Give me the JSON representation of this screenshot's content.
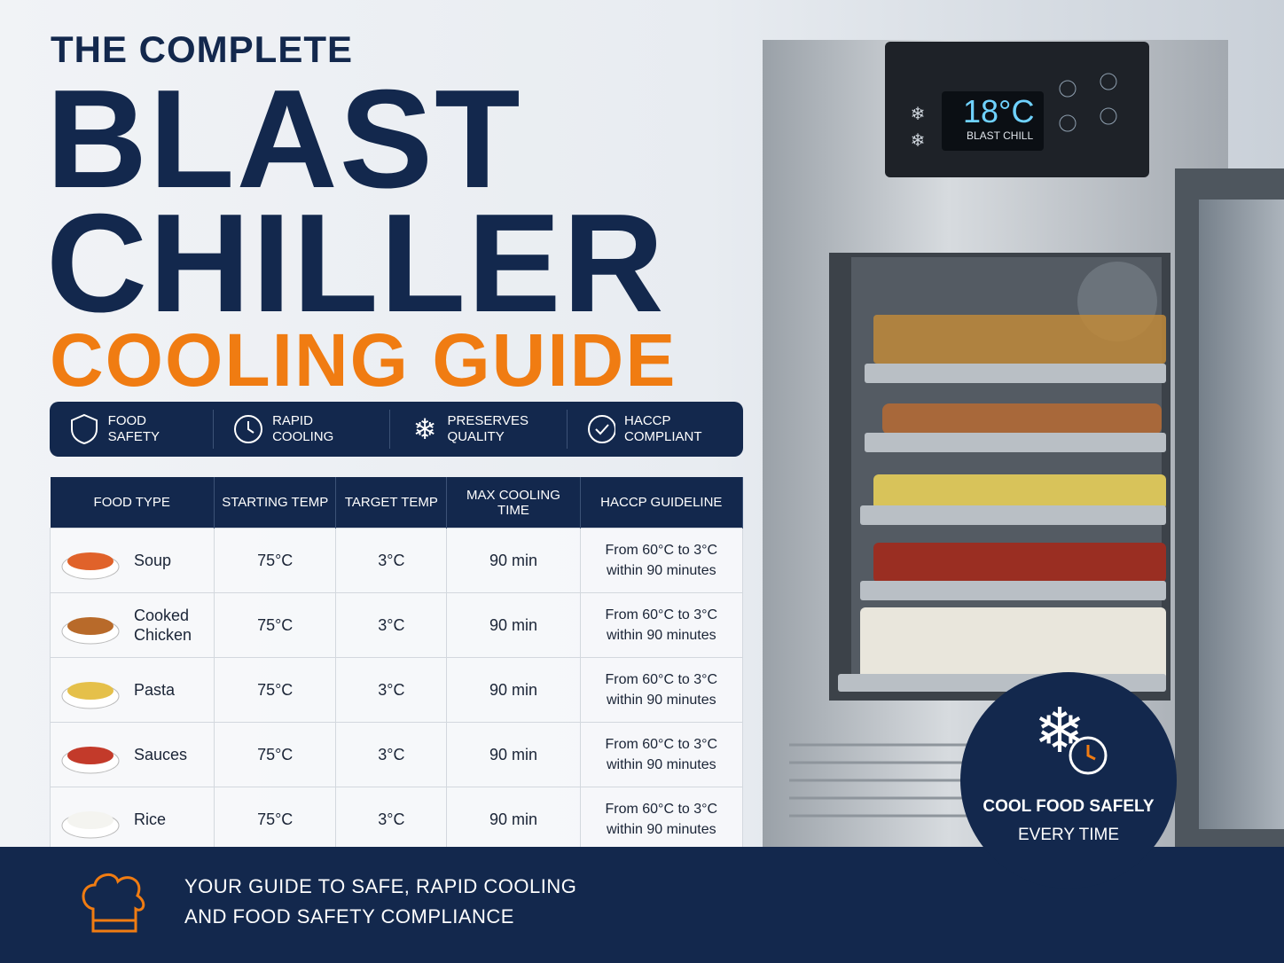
{
  "header": {
    "pre_title": "THE COMPLETE",
    "title_lines": [
      "BLAST",
      "CHILLER"
    ],
    "subtitle": "COOLING GUIDE"
  },
  "features": [
    "FOOD SAFETY",
    "RAPID COOLING",
    "PRESERVES QUALITY",
    "HACCP COMPLIANT"
  ],
  "table": {
    "columns": [
      "FOOD TYPE",
      "STARTING TEMP",
      "TARGET TEMP",
      "MAX COOLING TIME",
      "HACCP GUIDELINE"
    ],
    "rows": [
      [
        "Soup",
        "75°C",
        "3°C",
        "90 min",
        "From 60°C to 3°C within 90 minutes"
      ],
      [
        "Cooked Chicken",
        "75°C",
        "3°C",
        "90 min",
        "From 60°C to 3°C within 90 minutes"
      ],
      [
        "Pasta",
        "75°C",
        "3°C",
        "90 min",
        "From 60°C to 3°C within 90 minutes"
      ],
      [
        "Sauces",
        "75°C",
        "3°C",
        "90 min",
        "From 60°C to 3°C within 90 minutes"
      ],
      [
        "Rice",
        "75°C",
        "3°C",
        "90 min",
        "From 60°C to 3°C within 90 minutes"
      ]
    ]
  },
  "display": {
    "temperature": "18°C",
    "mode": "BLAST CHILL"
  },
  "callout": {
    "title": "COOL FOOD SAFELY",
    "subtitle": "EVERY TIME"
  },
  "footer": {
    "lines": [
      "YOUR GUIDE TO SAFE, RAPID COOLING",
      "AND FOOD SAFETY COMPLIANCE"
    ]
  }
}
